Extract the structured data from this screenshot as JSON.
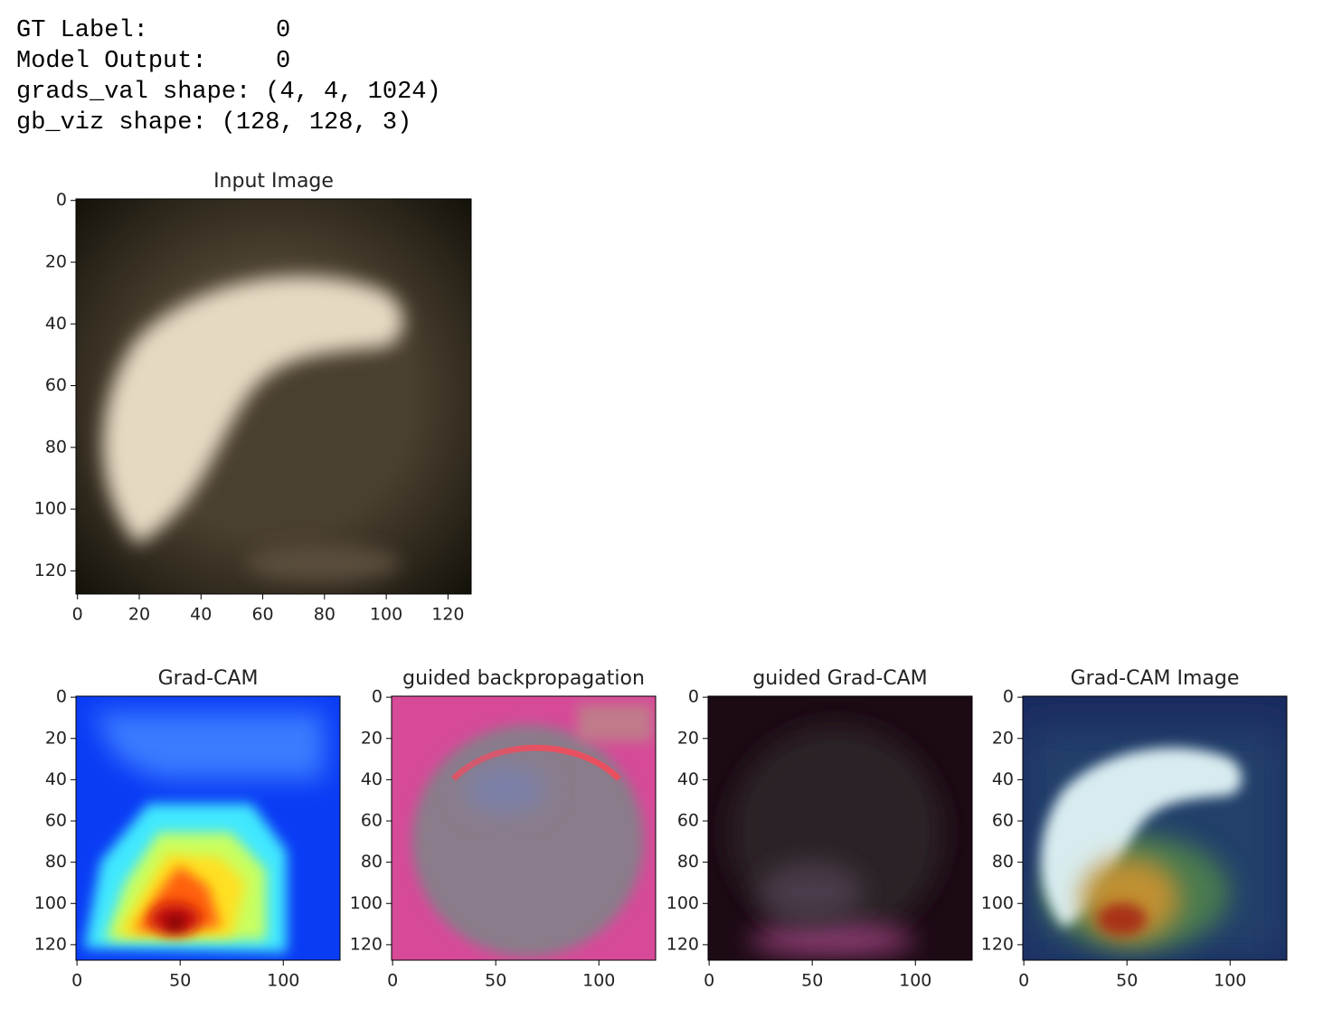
{
  "output_lines": [
    {
      "label": "GT Label:",
      "value": 0
    },
    {
      "label": "Model Output:",
      "value": 0
    },
    {
      "label": "grads_val shape:",
      "value": "(4, 4, 1024)"
    },
    {
      "label": "gb_viz shape:",
      "value": "(128, 128, 3)"
    }
  ],
  "panels": [
    {
      "title": "Input Image",
      "xlim": [
        -0.5,
        127.5
      ],
      "ylim": [
        127.5,
        -0.5
      ],
      "xticks": [
        0,
        20,
        40,
        60,
        80,
        100,
        120
      ],
      "yticks": [
        0,
        20,
        40,
        60,
        80,
        100,
        120
      ]
    },
    {
      "title": "Grad-CAM",
      "xlim": [
        -0.5,
        127.5
      ],
      "ylim": [
        127.5,
        -0.5
      ],
      "xticks": [
        0,
        50,
        100
      ],
      "yticks": [
        0,
        20,
        40,
        60,
        80,
        100,
        120
      ]
    },
    {
      "title": "guided backpropagation",
      "xlim": [
        -0.5,
        127.5
      ],
      "ylim": [
        127.5,
        -0.5
      ],
      "xticks": [
        0,
        50,
        100
      ],
      "yticks": [
        0,
        20,
        40,
        60,
        80,
        100,
        120
      ]
    },
    {
      "title": "guided Grad-CAM",
      "xlim": [
        -0.5,
        127.5
      ],
      "ylim": [
        127.5,
        -0.5
      ],
      "xticks": [
        0,
        50,
        100
      ],
      "yticks": [
        0,
        20,
        40,
        60,
        80,
        100,
        120
      ]
    },
    {
      "title": "Grad-CAM Image",
      "xlim": [
        -0.5,
        127.5
      ],
      "ylim": [
        127.5,
        -0.5
      ],
      "xticks": [
        0,
        50,
        100
      ],
      "yticks": [
        0,
        20,
        40,
        60,
        80,
        100,
        120
      ]
    }
  ]
}
